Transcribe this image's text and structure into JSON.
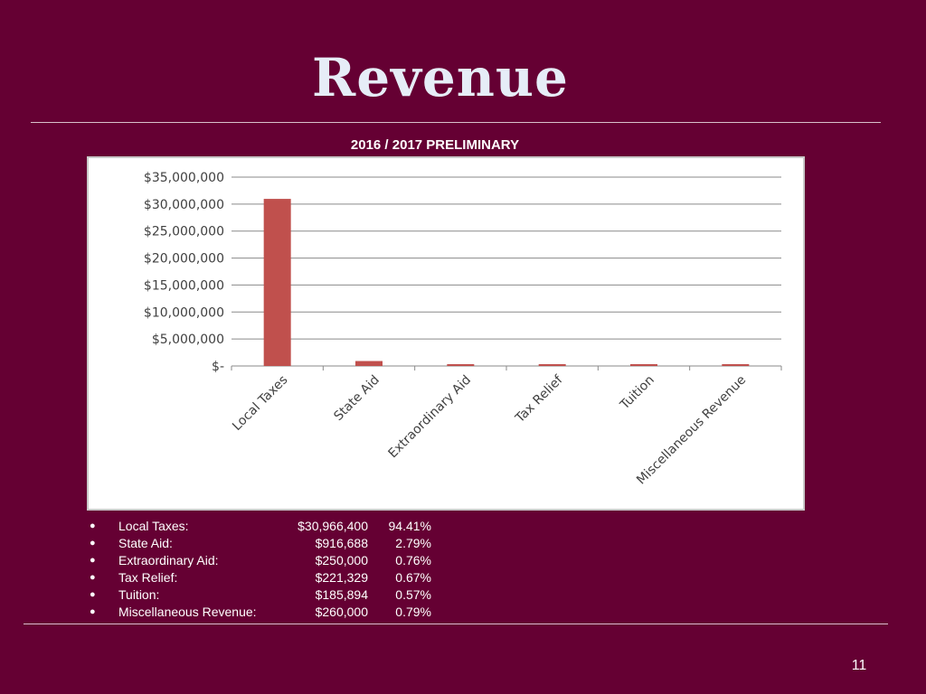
{
  "slide": {
    "title": "Revenue",
    "page_number": "11"
  },
  "chart_data": {
    "type": "bar",
    "title": "2016 / 2017 PRELIMINARY",
    "categories": [
      "Local Taxes",
      "State Aid",
      "Extraordinary Aid",
      "Tax Relief",
      "Tuition",
      "Miscellaneous Revenue"
    ],
    "values": [
      30966400,
      916688,
      250000,
      221329,
      185894,
      260000
    ],
    "ylim": [
      0,
      35000000
    ],
    "yticks": [
      0,
      5000000,
      10000000,
      15000000,
      20000000,
      25000000,
      30000000,
      35000000
    ],
    "ytick_labels": [
      "$-",
      "$5,000,000",
      "$10,000,000",
      "$15,000,000",
      "$20,000,000",
      "$25,000,000",
      "$30,000,000",
      "$35,000,000"
    ],
    "grid": true,
    "xlabel": "",
    "ylabel": "",
    "bar_color": "#c0504d"
  },
  "stats": [
    {
      "label": "Local Taxes:",
      "amount": "$30,966,400",
      "pct": "94.41%"
    },
    {
      "label": "State Aid:",
      "amount": "$916,688",
      "pct": "2.79%"
    },
    {
      "label": "Extraordinary Aid:",
      "amount": "$250,000",
      "pct": "0.76%"
    },
    {
      "label": "Tax Relief:",
      "amount": "$221,329",
      "pct": "0.67%"
    },
    {
      "label": "Tuition:",
      "amount": "$185,894",
      "pct": "0.57%"
    },
    {
      "label": "Miscellaneous Revenue:",
      "amount": "$260,000",
      "pct": "0.79%"
    }
  ]
}
